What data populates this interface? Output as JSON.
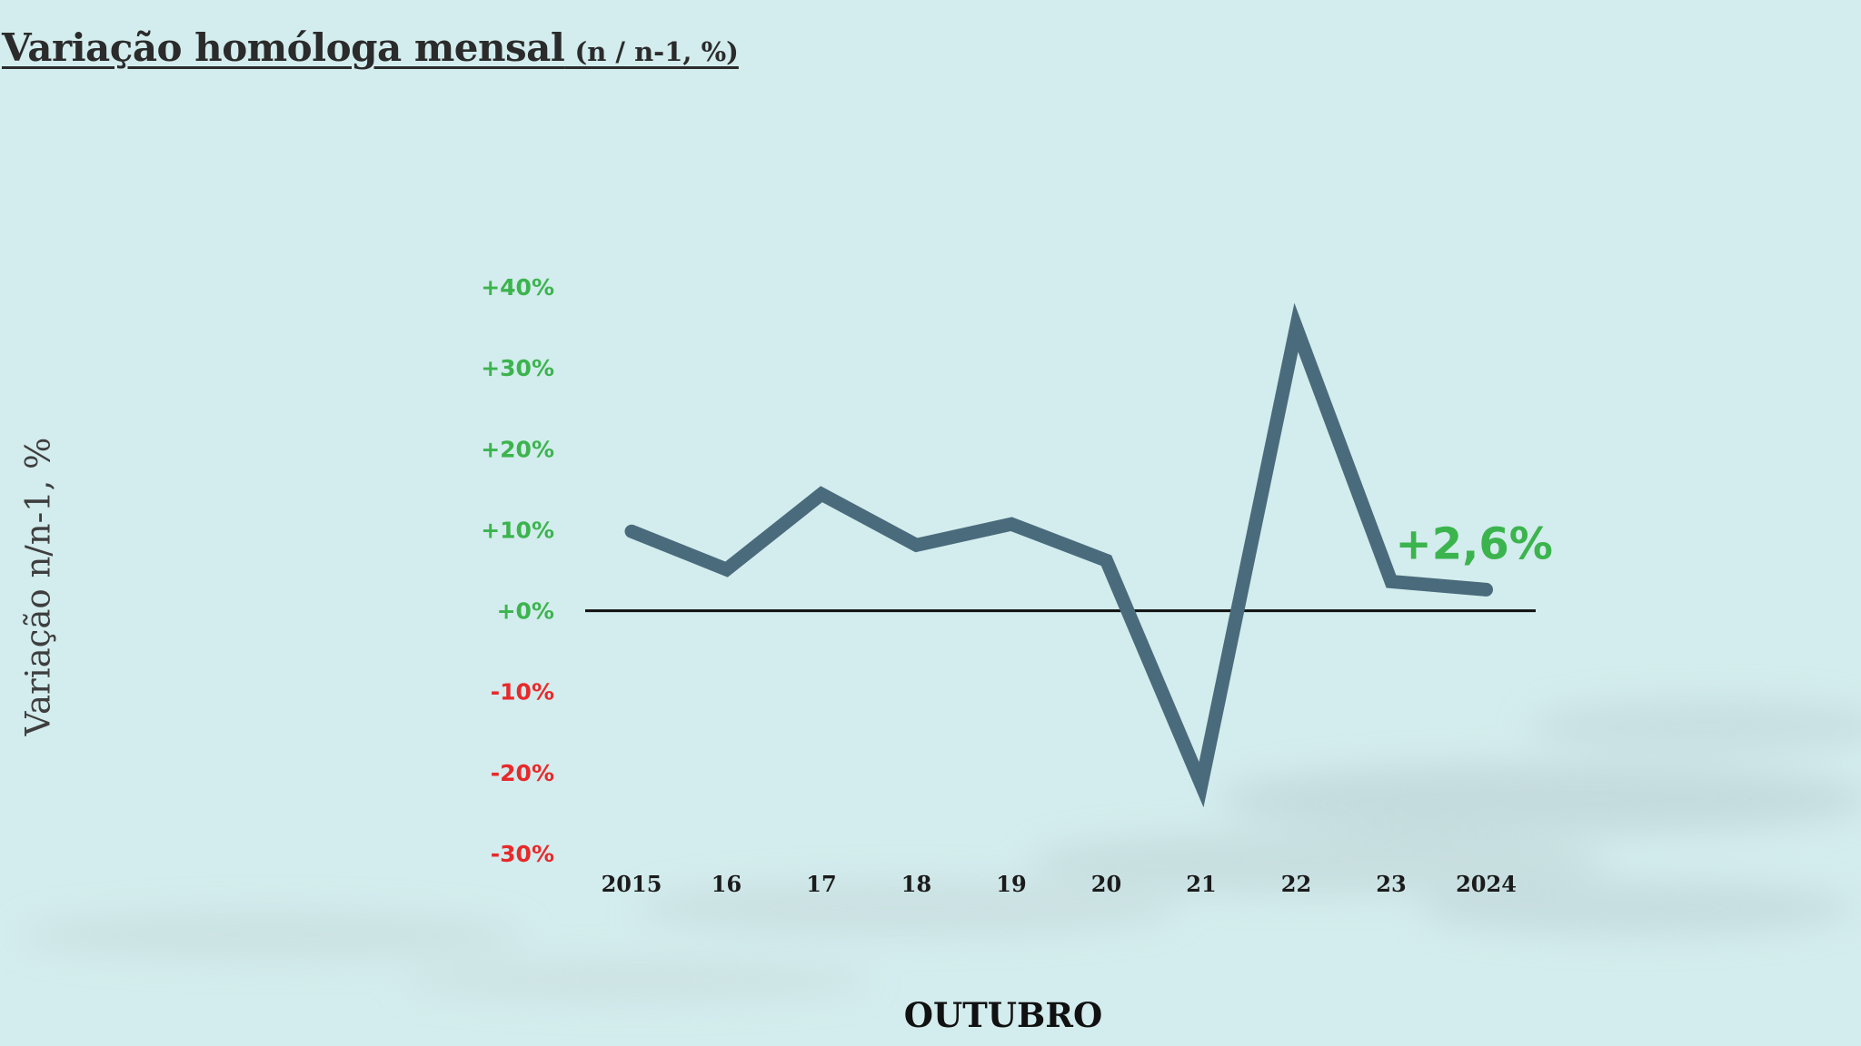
{
  "page": {
    "title_main": "Variação homóloga mensal",
    "title_sub": "(n / n-1, %)"
  },
  "colors": {
    "background": "#d3eced",
    "line": "#4a6b7c",
    "positive": "#3cb44e",
    "negative": "#e8292b",
    "baseline": "#111111"
  },
  "chart_data": {
    "type": "line",
    "title": "Variação homóloga mensal (n / n-1, %)",
    "ylabel": "Variação n/n-1, %",
    "xlabel": "OUTUBRO",
    "x": [
      "2015",
      "16",
      "17",
      "18",
      "19",
      "20",
      "21",
      "22",
      "23",
      "2024"
    ],
    "series": [
      {
        "values": [
          9.8,
          5.1,
          14.4,
          8.1,
          10.7,
          6.2,
          -21.5,
          35.0,
          3.6,
          2.6
        ]
      }
    ],
    "yticks": [
      {
        "value": 40,
        "label": "+40%"
      },
      {
        "value": 30,
        "label": "+30%"
      },
      {
        "value": 20,
        "label": "+20%"
      },
      {
        "value": 10,
        "label": "+10%"
      },
      {
        "value": 0,
        "label": "+0%"
      },
      {
        "value": -10,
        "label": "-10%"
      },
      {
        "value": -20,
        "label": "-20%"
      },
      {
        "value": -30,
        "label": "-30%"
      }
    ],
    "ylim": [
      -30,
      40
    ],
    "grid": false,
    "legend": "none",
    "annotations": [
      {
        "x": "2024",
        "text": "+2,6%"
      }
    ]
  }
}
